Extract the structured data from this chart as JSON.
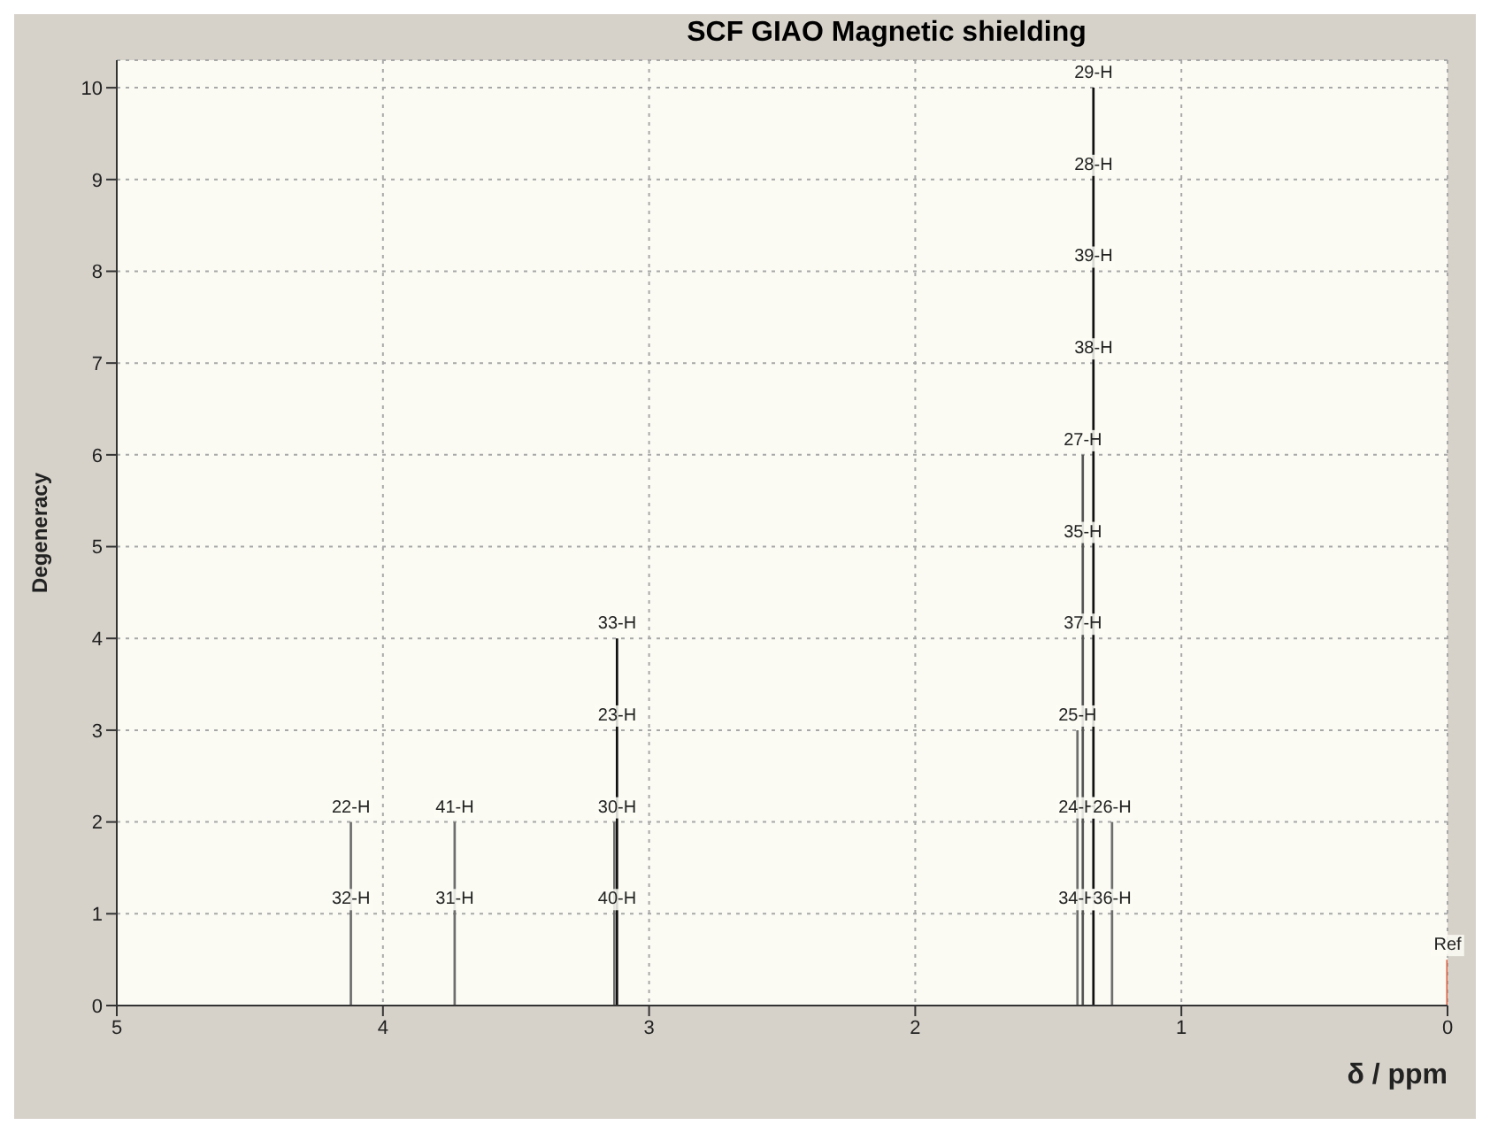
{
  "chart_data": {
    "type": "bar",
    "title": "SCF GIAO Magnetic shielding",
    "xlabel": "δ / ppm",
    "ylabel": "Degeneracy",
    "x": [
      4.12,
      3.73,
      3.13,
      3.12,
      1.39,
      1.37,
      1.33,
      1.26,
      0
    ],
    "values": [
      2,
      2,
      2,
      4,
      3,
      6,
      10,
      2,
      0.5
    ],
    "colors": [
      "#6e6e6e",
      "#6e6e6e",
      "#6e6e6e",
      "#111111",
      "#6e6e6e",
      "#555555",
      "#111111",
      "#6e6e6e",
      "#e06040"
    ],
    "xlim": [
      5,
      0
    ],
    "xticks": [
      5,
      4,
      3,
      2,
      1,
      0
    ],
    "ylim": [
      0,
      10.3
    ],
    "yticks": [
      0,
      1,
      2,
      3,
      4,
      5,
      6,
      7,
      8,
      9,
      10
    ],
    "grid": true,
    "annotations": [
      {
        "text": "32-H",
        "x": 4.12,
        "y": 1
      },
      {
        "text": "22-H",
        "x": 4.12,
        "y": 2
      },
      {
        "text": "31-H",
        "x": 3.73,
        "y": 1
      },
      {
        "text": "41-H",
        "x": 3.73,
        "y": 2
      },
      {
        "text": "40-H",
        "x": 3.12,
        "y": 1
      },
      {
        "text": "30-H",
        "x": 3.12,
        "y": 2
      },
      {
        "text": "23-H",
        "x": 3.12,
        "y": 3
      },
      {
        "text": "33-H",
        "x": 3.12,
        "y": 4
      },
      {
        "text": "34-H",
        "x": 1.39,
        "y": 1
      },
      {
        "text": "24-H",
        "x": 1.39,
        "y": 2
      },
      {
        "text": "25-H",
        "x": 1.39,
        "y": 3
      },
      {
        "text": "37-H",
        "x": 1.37,
        "y": 4
      },
      {
        "text": "35-H",
        "x": 1.37,
        "y": 5
      },
      {
        "text": "27-H",
        "x": 1.37,
        "y": 6
      },
      {
        "text": "38-H",
        "x": 1.33,
        "y": 7
      },
      {
        "text": "39-H",
        "x": 1.33,
        "y": 8
      },
      {
        "text": "28-H",
        "x": 1.33,
        "y": 9
      },
      {
        "text": "29-H",
        "x": 1.33,
        "y": 10
      },
      {
        "text": "36-H",
        "x": 1.26,
        "y": 1
      },
      {
        "text": "26-H",
        "x": 1.26,
        "y": 2
      },
      {
        "text": "Ref",
        "x": 0,
        "y": 0.5
      }
    ]
  }
}
